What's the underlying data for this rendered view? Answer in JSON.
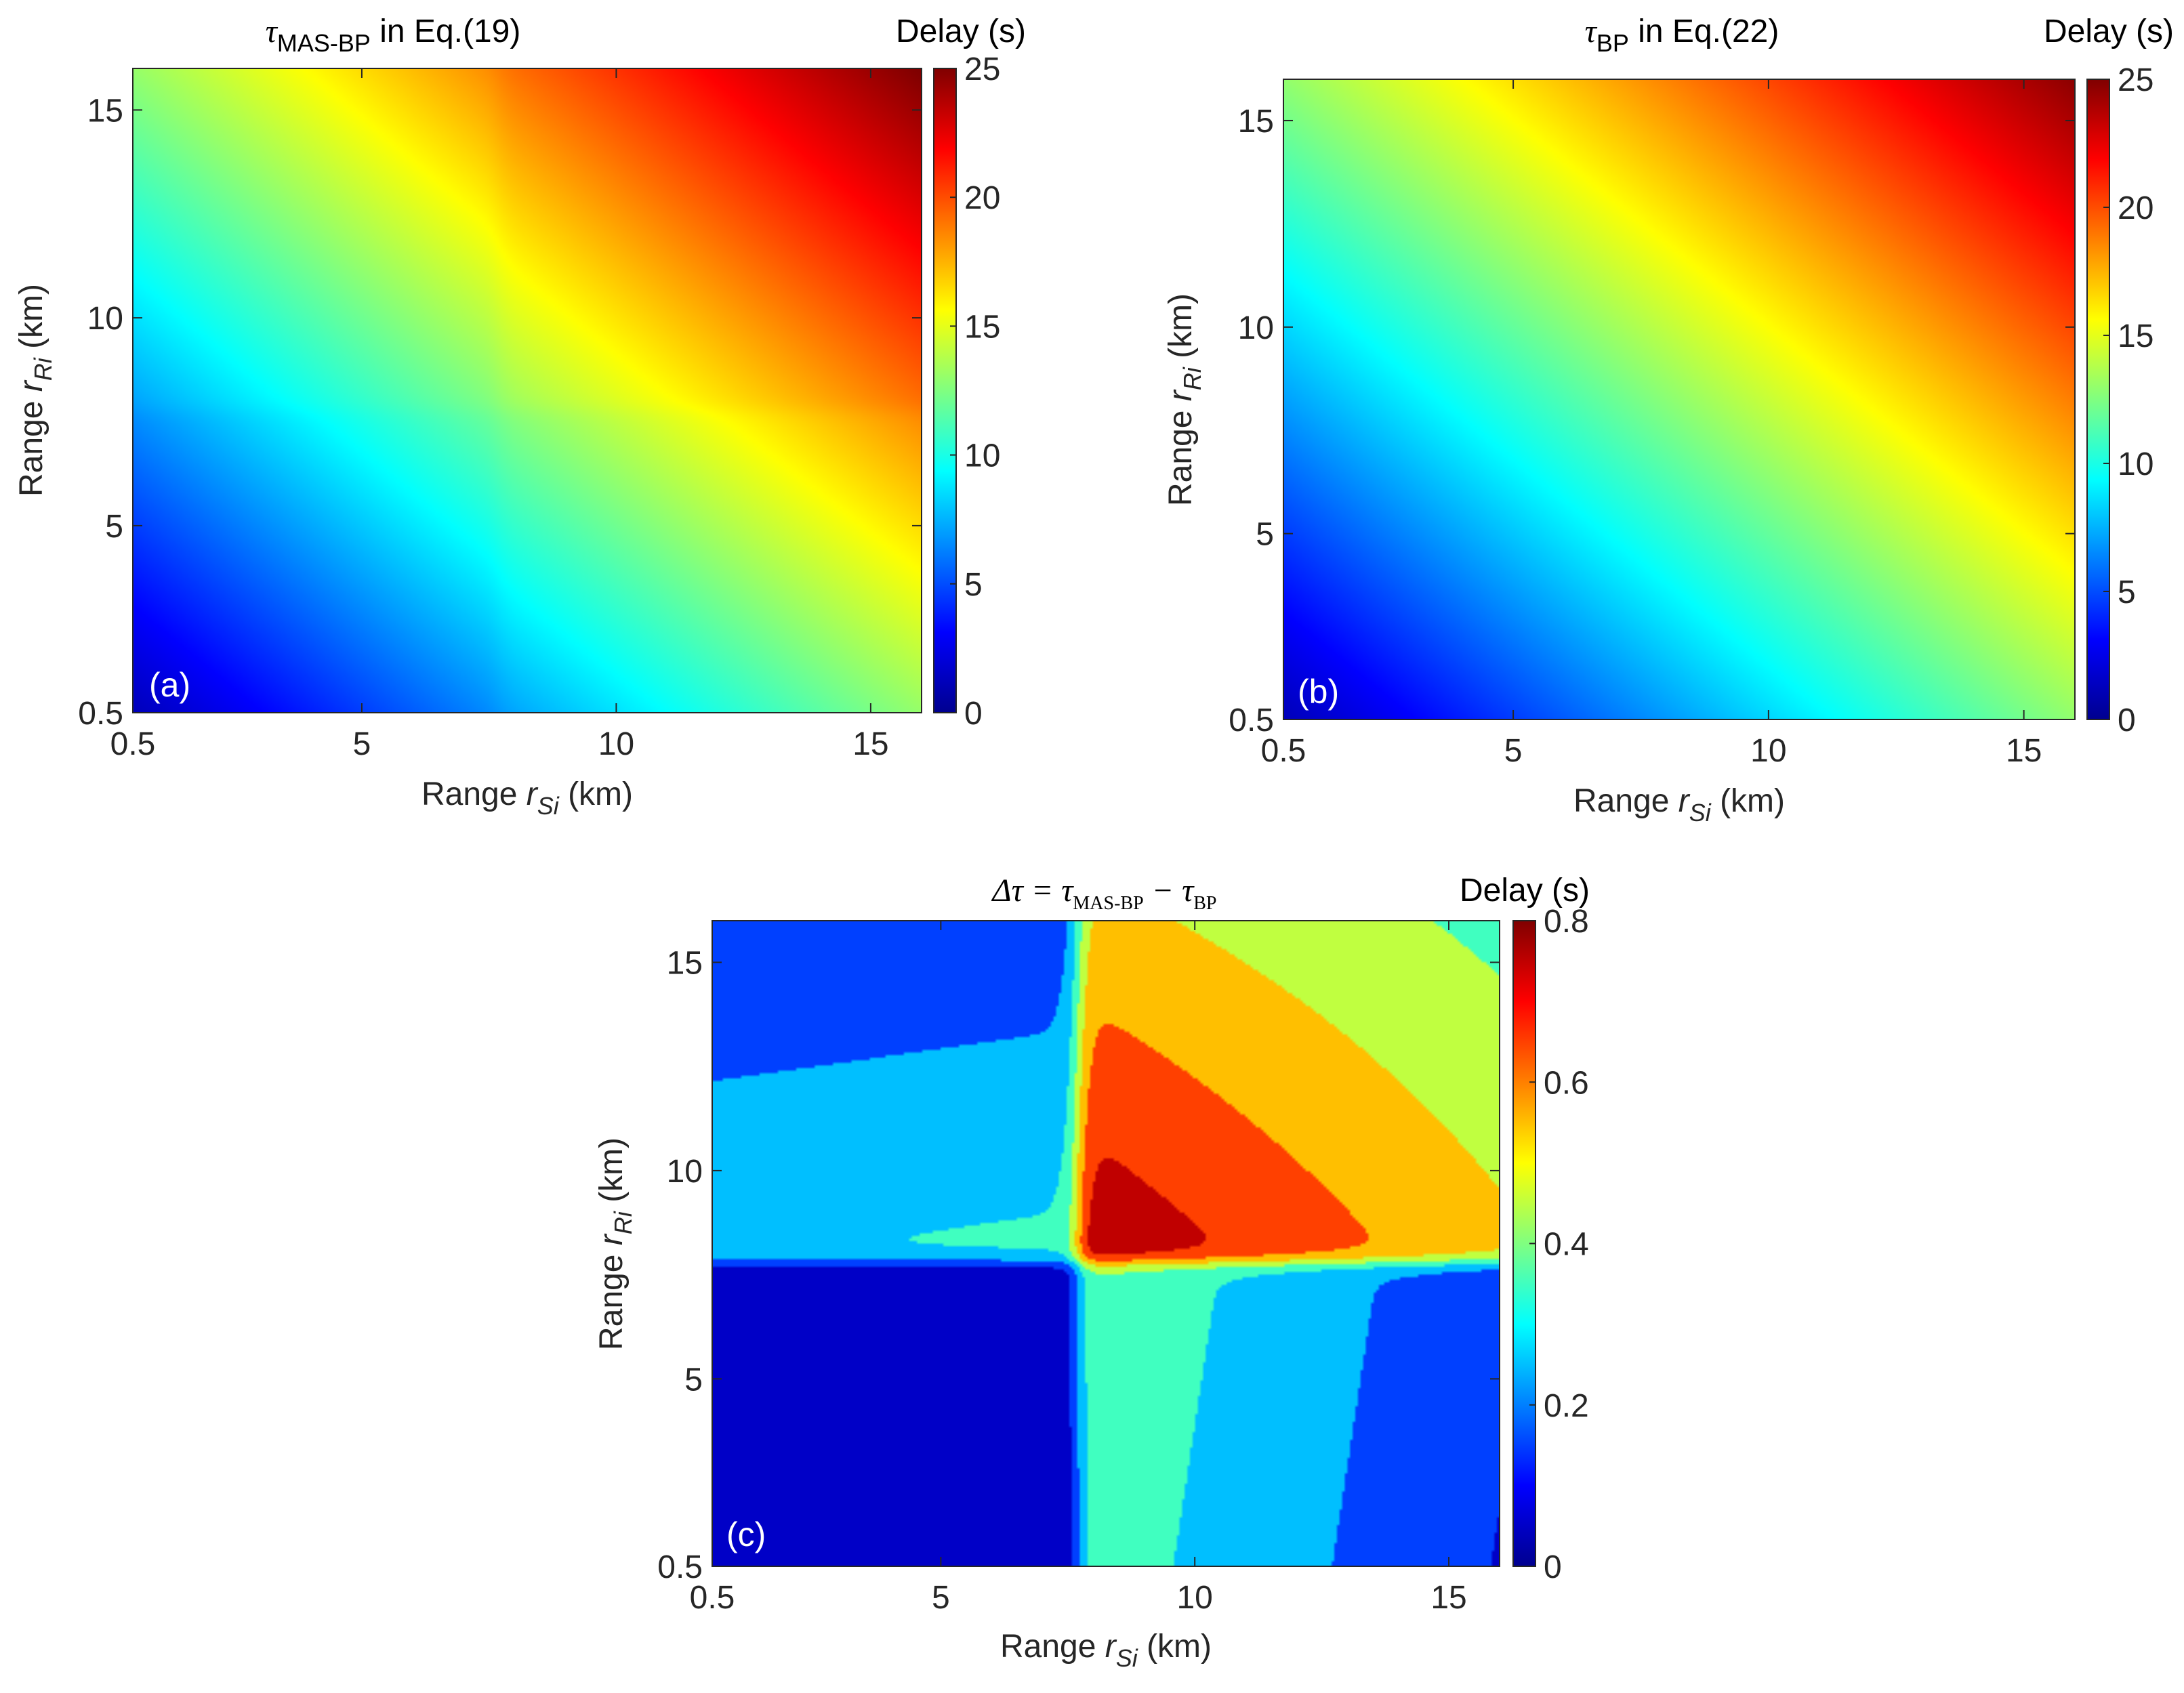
{
  "colors": {
    "jet": [
      "#00008f",
      "#0000ff",
      "#00ffff",
      "#80ff80",
      "#ffff00",
      "#ff8000",
      "#ff0000",
      "#800000"
    ],
    "axis": "#262626",
    "label_text": "#ffffff"
  },
  "chart_data": [
    {
      "id": "a",
      "type": "heatmap",
      "panel_label": "(a)",
      "title": {
        "symbol": "τ",
        "subscript": "MAS-BP",
        "suffix": " in Eq.(19)"
      },
      "xlabel": {
        "prefix": "Range ",
        "var": "r",
        "sub": "Si",
        "suffix": " (km)"
      },
      "ylabel": {
        "prefix": "Range ",
        "var": "r",
        "sub": "Ri",
        "suffix": " (km)"
      },
      "xlim": [
        0.5,
        16
      ],
      "ylim": [
        0.5,
        16
      ],
      "xticks": [
        0.5,
        5,
        10,
        15
      ],
      "xticklabels": [
        "0.5",
        "5",
        "10",
        "15"
      ],
      "yticks": [
        0.5,
        5,
        10,
        15
      ],
      "yticklabels": [
        "0.5",
        "5",
        "10",
        "15"
      ],
      "colorbar": {
        "title": "Delay (s)",
        "range": [
          0,
          25
        ],
        "ticks": [
          0,
          5,
          10,
          15,
          20,
          25
        ],
        "ticklabels": [
          "0",
          "5",
          "10",
          "15",
          "20",
          "25"
        ],
        "colormap": "jet"
      },
      "z_model": "delay(s) ≈ 0.76·(rSi + rRi) + Δτ(rSi, rRi); range ≈ 1–25 s"
    },
    {
      "id": "b",
      "type": "heatmap",
      "panel_label": "(b)",
      "title": {
        "symbol": "τ",
        "subscript": "BP",
        "suffix": " in Eq.(22)"
      },
      "xlabel": {
        "prefix": "Range ",
        "var": "r",
        "sub": "Si",
        "suffix": " (km)"
      },
      "ylabel": {
        "prefix": "Range ",
        "var": "r",
        "sub": "Ri",
        "suffix": " (km)"
      },
      "xlim": [
        0.5,
        16
      ],
      "ylim": [
        0.5,
        16
      ],
      "xticks": [
        0.5,
        5,
        10,
        15
      ],
      "xticklabels": [
        "0.5",
        "5",
        "10",
        "15"
      ],
      "yticks": [
        0.5,
        5,
        10,
        15
      ],
      "yticklabels": [
        "0.5",
        "5",
        "10",
        "15"
      ],
      "colorbar": {
        "title": "Delay (s)",
        "range": [
          0,
          25
        ],
        "ticks": [
          0,
          5,
          10,
          15,
          20,
          25
        ],
        "ticklabels": [
          "0",
          "5",
          "10",
          "15",
          "20",
          "25"
        ],
        "colormap": "jet"
      },
      "z_model": "delay(s) ≈ 0.76·(rSi + rRi); range ≈ 1–24 s"
    },
    {
      "id": "c",
      "type": "heatmap",
      "style": "filled-contour",
      "panel_label": "(c)",
      "title": {
        "lhs": "Δτ = τ",
        "sub1": "MAS-BP",
        "mid": " − τ",
        "sub2": "BP"
      },
      "xlabel": {
        "prefix": "Range ",
        "var": "r",
        "sub": "Si",
        "suffix": " (km)"
      },
      "ylabel": {
        "prefix": "Range ",
        "var": "r",
        "sub": "Ri",
        "suffix": " (km)"
      },
      "xlim": [
        0.5,
        16
      ],
      "ylim": [
        0.5,
        16
      ],
      "xticks": [
        0.5,
        5,
        10,
        15
      ],
      "xticklabels": [
        "0.5",
        "5",
        "10",
        "15"
      ],
      "yticks": [
        0.5,
        5,
        10,
        15
      ],
      "yticklabels": [
        "0.5",
        "5",
        "10",
        "15"
      ],
      "contour_levels": [
        0,
        0.1,
        0.2,
        0.3,
        0.4,
        0.5,
        0.6,
        0.7,
        0.8
      ],
      "colorbar": {
        "title": "Delay (s)",
        "range": [
          0,
          0.8
        ],
        "ticks": [
          0,
          0.2,
          0.4,
          0.6,
          0.8
        ],
        "ticklabels": [
          "0",
          "0.2",
          "0.4",
          "0.6",
          "0.8"
        ],
        "colormap": "jet"
      },
      "regions": [
        {
          "name": "lower-left",
          "rSi": [
            0.5,
            7.6
          ],
          "rRi": [
            0.5,
            7.7
          ],
          "delay": "~0.02"
        },
        {
          "name": "upper-left",
          "rSi": [
            0.5,
            7.6
          ],
          "rRi": [
            7.7,
            16
          ],
          "delay": "0.3–0.1, decreasing upward"
        },
        {
          "name": "lower-right",
          "rSi": [
            7.6,
            16
          ],
          "rRi": [
            0.5,
            7.7
          ],
          "delay": "0.35–0.1, decreasing rightward"
        },
        {
          "name": "upper-right",
          "rSi": [
            7.6,
            16
          ],
          "rRi": [
            7.7,
            16
          ],
          "delay": "peak ~0.78 near (8, 8), falling to ~0.35 at (16, 16)"
        }
      ]
    }
  ]
}
